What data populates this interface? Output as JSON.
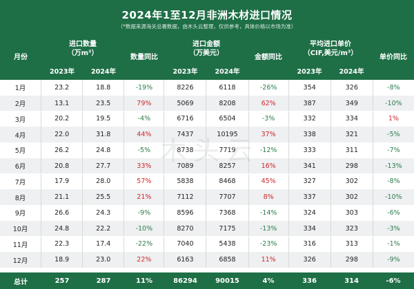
{
  "title": "2024年1至12月非洲木材进口情况",
  "subtitle": "（*数据来源海关总署数据，由木头云整理，仅供参考，具体价格以市场为准）",
  "headers": {
    "month": "月份",
    "qty_group": "进口数量",
    "qty_unit": "（万m³）",
    "qty_yoy": "数量同比",
    "amt_group": "进口金额",
    "amt_unit": "（万美元）",
    "amt_yoy": "金额同比",
    "price_group": "平均进口单价",
    "price_unit": "（CIF,美元/m³）",
    "price_yoy": "单价同比",
    "y2023": "2023年",
    "y2024": "2024年"
  },
  "rows": [
    {
      "month": "1月",
      "q23": "23.2",
      "q24": "18.8",
      "qy": "-19%",
      "a23": "8226",
      "a24": "6118",
      "ay": "-26%",
      "p23": "354",
      "p24": "326",
      "py": "-8%"
    },
    {
      "month": "2月",
      "q23": "13.1",
      "q24": "23.5",
      "qy": "79%",
      "a23": "5069",
      "a24": "8208",
      "ay": "62%",
      "p23": "387",
      "p24": "349",
      "py": "-10%"
    },
    {
      "month": "3月",
      "q23": "20.2",
      "q24": "19.5",
      "qy": "-4%",
      "a23": "6716",
      "a24": "6504",
      "ay": "-3%",
      "p23": "332",
      "p24": "334",
      "py": "1%"
    },
    {
      "month": "4月",
      "q23": "22.0",
      "q24": "31.8",
      "qy": "44%",
      "a23": "7437",
      "a24": "10195",
      "ay": "37%",
      "p23": "338",
      "p24": "321",
      "py": "-5%"
    },
    {
      "month": "5月",
      "q23": "26.2",
      "q24": "24.8",
      "qy": "-5%",
      "a23": "8738",
      "a24": "7719",
      "ay": "-12%",
      "p23": "333",
      "p24": "311",
      "py": "-7%"
    },
    {
      "month": "6月",
      "q23": "20.8",
      "q24": "27.7",
      "qy": "33%",
      "a23": "7089",
      "a24": "8257",
      "ay": "16%",
      "p23": "341",
      "p24": "298",
      "py": "-13%"
    },
    {
      "month": "7月",
      "q23": "17.9",
      "q24": "28.0",
      "qy": "57%",
      "a23": "5838",
      "a24": "8468",
      "ay": "45%",
      "p23": "327",
      "p24": "302",
      "py": "-8%"
    },
    {
      "month": "8月",
      "q23": "21.1",
      "q24": "25.5",
      "qy": "21%",
      "a23": "7112",
      "a24": "7707",
      "ay": "8%",
      "p23": "337",
      "p24": "302",
      "py": "-10%"
    },
    {
      "month": "9月",
      "q23": "26.6",
      "q24": "24.3",
      "qy": "-9%",
      "a23": "8596",
      "a24": "7368",
      "ay": "-14%",
      "p23": "324",
      "p24": "303",
      "py": "-6%"
    },
    {
      "month": "10月",
      "q23": "24.8",
      "q24": "22.2",
      "qy": "-10%",
      "a23": "8270",
      "a24": "7175",
      "ay": "-13%",
      "p23": "334",
      "p24": "323",
      "py": "-3%"
    },
    {
      "month": "11月",
      "q23": "22.3",
      "q24": "17.4",
      "qy": "-22%",
      "a23": "7040",
      "a24": "5438",
      "ay": "-23%",
      "p23": "316",
      "p24": "313",
      "py": "-1%"
    },
    {
      "month": "12月",
      "q23": "18.9",
      "q24": "23.0",
      "qy": "22%",
      "a23": "6163",
      "a24": "6858",
      "ay": "11%",
      "p23": "326",
      "p24": "298",
      "py": "-9%"
    }
  ],
  "total": {
    "month": "总计",
    "q23": "257",
    "q24": "287",
    "qy": "11%",
    "a23": "86294",
    "a24": "90015",
    "ay": "4%",
    "p23": "336",
    "p24": "314",
    "py": "-6%"
  },
  "watermark": "木头云",
  "colors": {
    "header_bg": "#1e6e46",
    "positive": "#d0262b",
    "negative": "#2c7d4c",
    "alt_row": "#eef0f2"
  }
}
